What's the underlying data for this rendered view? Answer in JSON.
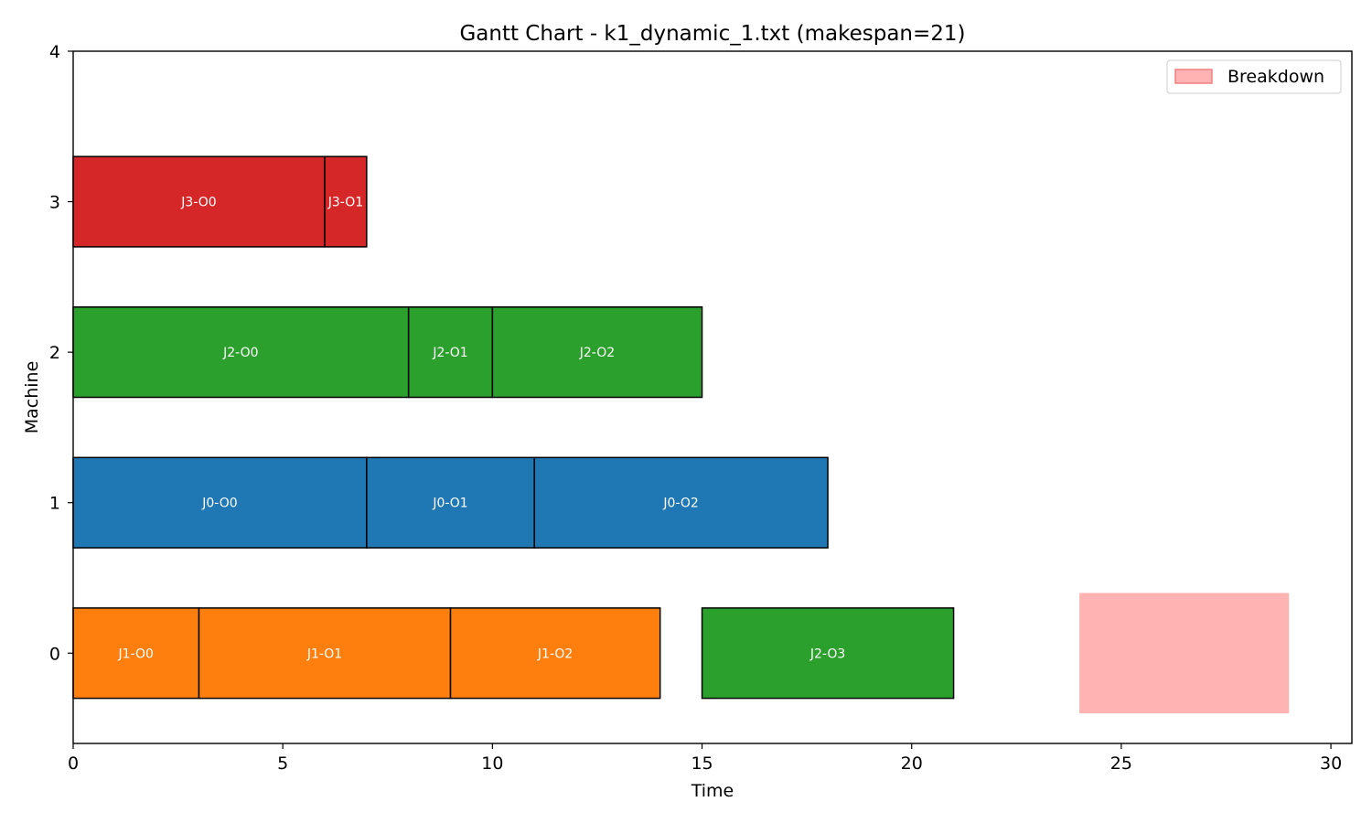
{
  "chart_data": {
    "type": "gantt",
    "title": "Gantt Chart - k1_dynamic_1.txt (makespan=21)",
    "xlabel": "Time",
    "ylabel": "Machine",
    "xlim": [
      0,
      30.5
    ],
    "ylim": [
      -0.6,
      4
    ],
    "xticks": [
      0,
      5,
      10,
      15,
      20,
      25,
      30
    ],
    "yticks": [
      0,
      1,
      2,
      3,
      4
    ],
    "grid": false,
    "legend_position": "top-right",
    "job_colors": {
      "J0": "#1f77b4",
      "J1": "#ff7f0e",
      "J2": "#2ca02c",
      "J3": "#d62728"
    },
    "operations": [
      {
        "label": "J1-O0",
        "job": "J1",
        "machine": 0,
        "start": 0,
        "end": 3
      },
      {
        "label": "J1-O1",
        "job": "J1",
        "machine": 0,
        "start": 3,
        "end": 9
      },
      {
        "label": "J1-O2",
        "job": "J1",
        "machine": 0,
        "start": 9,
        "end": 14
      },
      {
        "label": "J2-O3",
        "job": "J2",
        "machine": 0,
        "start": 15,
        "end": 21
      },
      {
        "label": "J0-O0",
        "job": "J0",
        "machine": 1,
        "start": 0,
        "end": 7
      },
      {
        "label": "J0-O1",
        "job": "J0",
        "machine": 1,
        "start": 7,
        "end": 11
      },
      {
        "label": "J0-O2",
        "job": "J0",
        "machine": 1,
        "start": 11,
        "end": 18
      },
      {
        "label": "J2-O0",
        "job": "J2",
        "machine": 2,
        "start": 0,
        "end": 8
      },
      {
        "label": "J2-O1",
        "job": "J2",
        "machine": 2,
        "start": 8,
        "end": 10
      },
      {
        "label": "J2-O2",
        "job": "J2",
        "machine": 2,
        "start": 10,
        "end": 15
      },
      {
        "label": "J3-O0",
        "job": "J3",
        "machine": 3,
        "start": 0,
        "end": 6
      },
      {
        "label": "J3-O1",
        "job": "J3",
        "machine": 3,
        "start": 6,
        "end": 7
      }
    ],
    "breakdowns": [
      {
        "machine": 0,
        "start": 24,
        "end": 29,
        "color": "#ffb3b3"
      }
    ],
    "legend": [
      {
        "label": "Breakdown",
        "color": "#ffb3b3",
        "edge": "#f08080"
      }
    ]
  }
}
